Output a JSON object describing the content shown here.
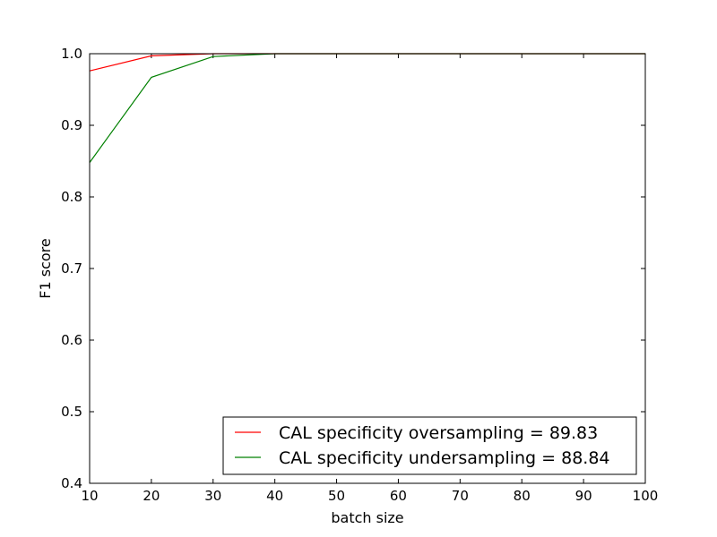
{
  "chart_data": {
    "type": "line",
    "title": "",
    "xlabel": "batch size",
    "ylabel": "F1 score",
    "xlim": [
      10,
      100
    ],
    "ylim": [
      0.4,
      1.0
    ],
    "xticks": [
      10,
      20,
      30,
      40,
      50,
      60,
      70,
      80,
      90,
      100
    ],
    "yticks": [
      0.4,
      0.5,
      0.6,
      0.7,
      0.8,
      0.9,
      1.0
    ],
    "xtick_labels": [
      "10",
      "20",
      "30",
      "40",
      "50",
      "60",
      "70",
      "80",
      "90",
      "100"
    ],
    "ytick_labels": [
      "0.4",
      "0.5",
      "0.6",
      "0.7",
      "0.8",
      "0.9",
      "1.0"
    ],
    "grid": false,
    "legend_position": "lower-right",
    "series": [
      {
        "name": "CAL specificity oversampling = 89.83",
        "color": "#ff0000",
        "x": [
          10,
          20,
          30,
          40,
          50,
          60,
          70,
          80,
          90,
          100
        ],
        "y": [
          0.976,
          0.997,
          1.0,
          1.0,
          1.0,
          1.0,
          1.0,
          1.0,
          1.0,
          1.0
        ]
      },
      {
        "name": "CAL specificity undersampling = 88.84",
        "color": "#008000",
        "x": [
          10,
          20,
          30,
          40,
          50,
          60,
          70,
          80,
          90,
          100
        ],
        "y": [
          0.848,
          0.967,
          0.996,
          1.0,
          1.0,
          1.0,
          1.0,
          1.0,
          1.0,
          1.0
        ]
      }
    ]
  }
}
